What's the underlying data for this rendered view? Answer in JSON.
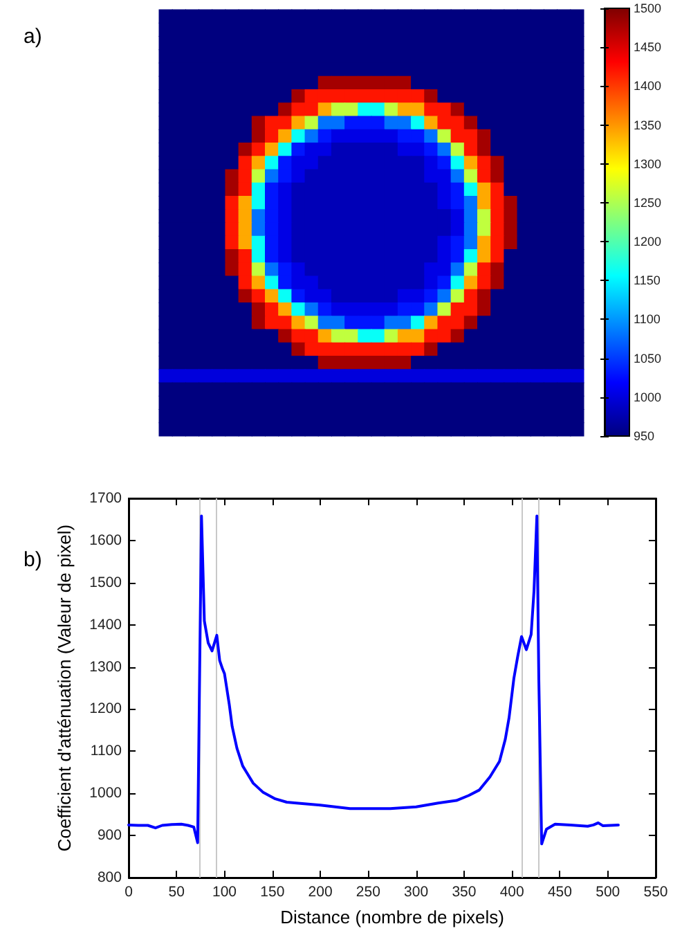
{
  "chart_data": [
    {
      "type": "heatmap",
      "title": "a)",
      "categories": [
        null,
        null,
        null,
        null,
        null,
        null,
        null,
        null,
        null,
        null,
        null,
        null,
        null,
        null,
        null,
        null,
        null,
        null,
        null,
        null,
        null,
        null,
        null,
        null,
        null,
        null,
        null,
        null,
        null,
        null,
        null,
        null
      ],
      "y_categories": [
        null,
        null,
        null,
        null,
        null,
        null,
        null,
        null,
        null,
        null,
        null,
        null,
        null,
        null,
        null,
        null,
        null,
        null,
        null,
        null,
        null,
        null,
        null,
        null,
        null,
        null,
        null,
        null,
        null,
        null,
        null,
        null
      ],
      "clim": [
        950,
        1500
      ],
      "cticks": [
        950,
        1000,
        1050,
        1100,
        1150,
        1200,
        1250,
        1300,
        1350,
        1400,
        1450,
        1500
      ],
      "cells": [
        [
          950,
          950,
          950,
          950,
          950,
          950,
          950,
          950,
          950,
          950,
          950,
          950,
          950,
          950,
          950,
          950,
          950,
          950,
          950,
          950,
          950,
          950,
          950,
          950,
          950,
          950,
          950,
          950,
          950,
          950,
          950,
          950
        ],
        [
          950,
          950,
          950,
          950,
          950,
          950,
          950,
          950,
          950,
          950,
          950,
          950,
          950,
          950,
          950,
          950,
          950,
          950,
          950,
          950,
          950,
          950,
          950,
          950,
          950,
          950,
          950,
          950,
          950,
          950,
          950,
          950
        ],
        [
          950,
          950,
          950,
          950,
          950,
          950,
          950,
          950,
          950,
          950,
          950,
          950,
          950,
          950,
          950,
          950,
          950,
          950,
          950,
          950,
          950,
          950,
          950,
          950,
          950,
          950,
          950,
          950,
          950,
          950,
          950,
          950
        ],
        [
          950,
          950,
          950,
          950,
          950,
          950,
          950,
          950,
          950,
          950,
          950,
          950,
          950,
          950,
          950,
          950,
          950,
          950,
          950,
          950,
          950,
          950,
          950,
          950,
          950,
          950,
          950,
          950,
          950,
          950,
          950,
          950
        ],
        [
          950,
          950,
          950,
          950,
          950,
          950,
          950,
          950,
          950,
          950,
          950,
          950,
          950,
          950,
          950,
          950,
          950,
          950,
          950,
          950,
          950,
          950,
          950,
          950,
          950,
          950,
          950,
          950,
          950,
          950,
          950,
          950
        ],
        [
          950,
          950,
          950,
          950,
          950,
          950,
          950,
          950,
          950,
          950,
          950,
          950,
          1480,
          1480,
          1480,
          1480,
          1480,
          1480,
          1480,
          950,
          950,
          950,
          950,
          950,
          950,
          950,
          950,
          950,
          950,
          950,
          950,
          950
        ],
        [
          950,
          950,
          950,
          950,
          950,
          950,
          950,
          950,
          950,
          950,
          1480,
          1420,
          1420,
          1420,
          1420,
          1420,
          1420,
          1420,
          1420,
          1420,
          1480,
          950,
          950,
          950,
          950,
          950,
          950,
          950,
          950,
          950,
          950,
          950
        ],
        [
          950,
          950,
          950,
          950,
          950,
          950,
          950,
          950,
          950,
          1480,
          1420,
          1420,
          1340,
          1260,
          1260,
          1160,
          1160,
          1260,
          1340,
          1340,
          1420,
          1420,
          1480,
          950,
          950,
          950,
          950,
          950,
          950,
          950,
          950,
          950
        ],
        [
          950,
          950,
          950,
          950,
          950,
          950,
          950,
          1480,
          1420,
          1420,
          1340,
          1260,
          1080,
          1080,
          1030,
          1030,
          1030,
          1080,
          1080,
          1160,
          1340,
          1420,
          1420,
          1480,
          950,
          950,
          950,
          950,
          950,
          950,
          950,
          950
        ],
        [
          950,
          950,
          950,
          950,
          950,
          950,
          950,
          1480,
          1420,
          1340,
          1160,
          1080,
          1030,
          1005,
          1005,
          1005,
          1005,
          1005,
          1030,
          1030,
          1080,
          1260,
          1420,
          1420,
          1480,
          950,
          950,
          950,
          950,
          950,
          950,
          950
        ],
        [
          950,
          950,
          950,
          950,
          950,
          950,
          1480,
          1420,
          1340,
          1160,
          1030,
          1005,
          1005,
          980,
          980,
          980,
          980,
          980,
          1005,
          1005,
          1030,
          1080,
          1260,
          1420,
          1480,
          950,
          950,
          950,
          950,
          950,
          950,
          950
        ],
        [
          950,
          950,
          950,
          950,
          950,
          950,
          1420,
          1340,
          1160,
          1030,
          1005,
          1005,
          980,
          980,
          980,
          980,
          980,
          980,
          980,
          980,
          1005,
          1030,
          1160,
          1340,
          1420,
          1480,
          950,
          950,
          950,
          950,
          950,
          950
        ],
        [
          950,
          950,
          950,
          950,
          950,
          1480,
          1420,
          1260,
          1080,
          1030,
          1005,
          980,
          980,
          980,
          980,
          980,
          980,
          980,
          980,
          980,
          1005,
          1005,
          1080,
          1260,
          1420,
          1480,
          950,
          950,
          950,
          950,
          950,
          950
        ],
        [
          950,
          950,
          950,
          950,
          950,
          1480,
          1420,
          1160,
          1030,
          1005,
          980,
          980,
          980,
          980,
          980,
          980,
          980,
          980,
          980,
          980,
          980,
          1005,
          1030,
          1160,
          1340,
          1420,
          950,
          950,
          950,
          950,
          950,
          950
        ],
        [
          950,
          950,
          950,
          950,
          950,
          1420,
          1340,
          1160,
          1030,
          1005,
          980,
          980,
          980,
          980,
          980,
          980,
          980,
          980,
          980,
          980,
          980,
          1005,
          1030,
          1080,
          1340,
          1420,
          1480,
          950,
          950,
          950,
          950,
          950
        ],
        [
          950,
          950,
          950,
          950,
          950,
          1420,
          1340,
          1080,
          1030,
          1005,
          980,
          980,
          980,
          980,
          980,
          980,
          980,
          980,
          980,
          980,
          980,
          980,
          1005,
          1080,
          1260,
          1420,
          1480,
          950,
          950,
          950,
          950,
          950
        ],
        [
          950,
          950,
          950,
          950,
          950,
          1420,
          1340,
          1080,
          1030,
          1005,
          980,
          980,
          980,
          980,
          980,
          980,
          980,
          980,
          980,
          980,
          980,
          980,
          1005,
          1080,
          1260,
          1420,
          1480,
          950,
          950,
          950,
          950,
          950
        ],
        [
          950,
          950,
          950,
          950,
          950,
          1420,
          1340,
          1160,
          1030,
          1005,
          980,
          980,
          980,
          980,
          980,
          980,
          980,
          980,
          980,
          980,
          980,
          1005,
          1030,
          1080,
          1340,
          1420,
          1480,
          950,
          950,
          950,
          950,
          950
        ],
        [
          950,
          950,
          950,
          950,
          950,
          1480,
          1420,
          1160,
          1030,
          1005,
          980,
          980,
          980,
          980,
          980,
          980,
          980,
          980,
          980,
          980,
          980,
          1005,
          1030,
          1160,
          1340,
          1420,
          950,
          950,
          950,
          950,
          950,
          950
        ],
        [
          950,
          950,
          950,
          950,
          950,
          1480,
          1420,
          1260,
          1080,
          1030,
          1005,
          980,
          980,
          980,
          980,
          980,
          980,
          980,
          980,
          980,
          1005,
          1005,
          1080,
          1260,
          1420,
          1480,
          950,
          950,
          950,
          950,
          950,
          950
        ],
        [
          950,
          950,
          950,
          950,
          950,
          950,
          1420,
          1340,
          1160,
          1030,
          1005,
          1005,
          980,
          980,
          980,
          980,
          980,
          980,
          980,
          980,
          1005,
          1030,
          1160,
          1340,
          1420,
          1480,
          950,
          950,
          950,
          950,
          950,
          950
        ],
        [
          950,
          950,
          950,
          950,
          950,
          950,
          1480,
          1420,
          1340,
          1160,
          1030,
          1005,
          1005,
          980,
          980,
          980,
          980,
          980,
          1005,
          1005,
          1030,
          1080,
          1260,
          1420,
          1480,
          950,
          950,
          950,
          950,
          950,
          950,
          950
        ],
        [
          950,
          950,
          950,
          950,
          950,
          950,
          950,
          1480,
          1420,
          1340,
          1160,
          1080,
          1030,
          1005,
          1005,
          1005,
          1005,
          1005,
          1030,
          1030,
          1080,
          1260,
          1420,
          1420,
          1480,
          950,
          950,
          950,
          950,
          950,
          950,
          950
        ],
        [
          950,
          950,
          950,
          950,
          950,
          950,
          950,
          1480,
          1420,
          1420,
          1340,
          1260,
          1080,
          1080,
          1030,
          1030,
          1030,
          1080,
          1080,
          1160,
          1340,
          1420,
          1420,
          1480,
          950,
          950,
          950,
          950,
          950,
          950,
          950,
          950
        ],
        [
          950,
          950,
          950,
          950,
          950,
          950,
          950,
          950,
          950,
          1480,
          1420,
          1420,
          1340,
          1260,
          1260,
          1160,
          1160,
          1260,
          1340,
          1340,
          1420,
          1420,
          1480,
          950,
          950,
          950,
          950,
          950,
          950,
          950,
          950,
          950
        ],
        [
          950,
          950,
          950,
          950,
          950,
          950,
          950,
          950,
          950,
          950,
          1480,
          1420,
          1420,
          1420,
          1420,
          1420,
          1420,
          1420,
          1420,
          1420,
          1480,
          950,
          950,
          950,
          950,
          950,
          950,
          950,
          950,
          950,
          950,
          950
        ],
        [
          950,
          950,
          950,
          950,
          950,
          950,
          950,
          950,
          950,
          950,
          950,
          950,
          1480,
          1480,
          1480,
          1480,
          1480,
          1480,
          1480,
          950,
          950,
          950,
          950,
          950,
          950,
          950,
          950,
          950,
          950,
          950,
          950,
          950
        ],
        [
          1000,
          1000,
          1000,
          1000,
          1000,
          1000,
          1000,
          1000,
          1000,
          1000,
          1000,
          1000,
          1000,
          1000,
          1000,
          1000,
          1000,
          1000,
          1000,
          1000,
          1000,
          1000,
          1000,
          1000,
          1000,
          1000,
          1000,
          1000,
          1000,
          1000,
          1000,
          1000
        ],
        [
          950,
          950,
          950,
          950,
          950,
          950,
          950,
          950,
          950,
          950,
          950,
          950,
          950,
          950,
          950,
          950,
          950,
          950,
          950,
          950,
          950,
          950,
          950,
          950,
          950,
          950,
          950,
          950,
          950,
          950,
          950,
          950
        ],
        [
          950,
          950,
          950,
          950,
          950,
          950,
          950,
          950,
          950,
          950,
          950,
          950,
          950,
          950,
          950,
          950,
          950,
          950,
          950,
          950,
          950,
          950,
          950,
          950,
          950,
          950,
          950,
          950,
          950,
          950,
          950,
          950
        ],
        [
          950,
          950,
          950,
          950,
          950,
          950,
          950,
          950,
          950,
          950,
          950,
          950,
          950,
          950,
          950,
          950,
          950,
          950,
          950,
          950,
          950,
          950,
          950,
          950,
          950,
          950,
          950,
          950,
          950,
          950,
          950,
          950
        ],
        [
          950,
          950,
          950,
          950,
          950,
          950,
          950,
          950,
          950,
          950,
          950,
          950,
          950,
          950,
          950,
          950,
          950,
          950,
          950,
          950,
          950,
          950,
          950,
          950,
          950,
          950,
          950,
          950,
          950,
          950,
          950,
          950
        ]
      ]
    },
    {
      "type": "line",
      "title": "b)",
      "xlabel": "Distance (nombre de pixels)",
      "ylabel": "Coefficient d'atténuation (Valeur de pixel)",
      "x": [
        0,
        10,
        20,
        28,
        35,
        45,
        55,
        62,
        68,
        72,
        76,
        79,
        83,
        87,
        92,
        95,
        98,
        100,
        105,
        108,
        113,
        119,
        123,
        130,
        140,
        153,
        165,
        175,
        200,
        231,
        250,
        273,
        300,
        323,
        342,
        355,
        366,
        377,
        387,
        393,
        397,
        402,
        406,
        410,
        415,
        420,
        423,
        426,
        428,
        431,
        436,
        445,
        461,
        479,
        485,
        490,
        495,
        511
      ],
      "values": [
        925,
        924,
        924,
        918,
        924,
        926,
        927,
        924,
        920,
        883,
        1658,
        1409,
        1357,
        1338,
        1375,
        1315,
        1295,
        1284,
        1211,
        1159,
        1107,
        1065,
        1050,
        1024,
        1003,
        987,
        979,
        977,
        972,
        964,
        964,
        964,
        968,
        977,
        983,
        995,
        1008,
        1039,
        1076,
        1128,
        1180,
        1273,
        1325,
        1372,
        1341,
        1377,
        1481,
        1658,
        1273,
        880,
        915,
        927,
        925,
        922,
        925,
        930,
        923,
        925
      ],
      "color": "#0000ff",
      "xlim": [
        0,
        550
      ],
      "xticks": [
        0,
        50,
        100,
        150,
        200,
        250,
        300,
        350,
        400,
        450,
        500,
        550
      ],
      "ylim": [
        800,
        1700
      ],
      "yticks": [
        800,
        900,
        1000,
        1100,
        1200,
        1300,
        1400,
        1500,
        1600,
        1700
      ],
      "grid": false,
      "ref_lines": [
        {
          "axis": "x",
          "value": 74,
          "color": "#c8c8c8"
        },
        {
          "axis": "x",
          "value": 92,
          "color": "#c8c8c8"
        },
        {
          "axis": "x",
          "value": 411,
          "color": "#c8c8c8"
        },
        {
          "axis": "x",
          "value": 427,
          "color": "#c8c8c8"
        }
      ]
    }
  ]
}
